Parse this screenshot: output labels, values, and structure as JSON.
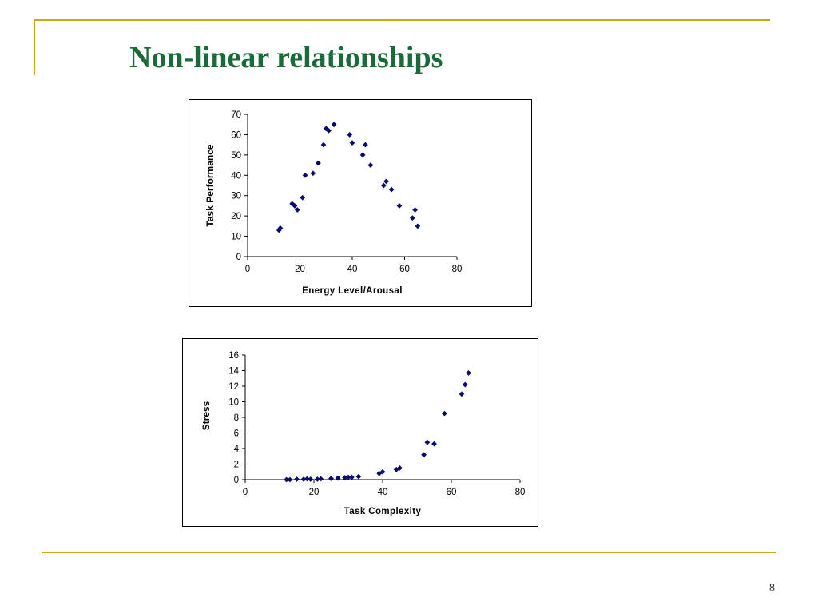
{
  "slide": {
    "title": "Non-linear relationships",
    "page_number": "8",
    "accent_color": "#d4a21a",
    "title_color": "#1a6a3a"
  },
  "chart_data": [
    {
      "type": "scatter",
      "marker_color": "#0a0a6e",
      "marker": "diamond",
      "xlabel": "Energy Level/Arousal",
      "ylabel": "Task Performance",
      "xlim": [
        0,
        80
      ],
      "ylim": [
        0,
        70
      ],
      "x_ticks": [
        0,
        20,
        40,
        60,
        80
      ],
      "y_ticks": [
        0,
        10,
        20,
        30,
        40,
        50,
        60,
        70
      ],
      "grid": false,
      "legend": "none",
      "points": [
        [
          12,
          13
        ],
        [
          12.5,
          14
        ],
        [
          17,
          26
        ],
        [
          18,
          25
        ],
        [
          19,
          23
        ],
        [
          21,
          29
        ],
        [
          22,
          40
        ],
        [
          25,
          41
        ],
        [
          27,
          46
        ],
        [
          29,
          55
        ],
        [
          30,
          63
        ],
        [
          31,
          62
        ],
        [
          33,
          65
        ],
        [
          39,
          60
        ],
        [
          40,
          56
        ],
        [
          44,
          50
        ],
        [
          45,
          55
        ],
        [
          47,
          45
        ],
        [
          52,
          35
        ],
        [
          53,
          37
        ],
        [
          55,
          33
        ],
        [
          58,
          25
        ],
        [
          63,
          19
        ],
        [
          64,
          23
        ],
        [
          65,
          15
        ]
      ]
    },
    {
      "type": "scatter",
      "marker_color": "#0a0a6e",
      "marker": "diamond",
      "xlabel": "Task Complexity",
      "ylabel": "Stress",
      "xlim": [
        0,
        80
      ],
      "ylim": [
        0,
        16
      ],
      "x_ticks": [
        0,
        20,
        40,
        60,
        80
      ],
      "y_ticks": [
        0,
        2,
        4,
        6,
        8,
        10,
        12,
        14,
        16
      ],
      "grid": false,
      "legend": "none",
      "points": [
        [
          12,
          0
        ],
        [
          13,
          0
        ],
        [
          15,
          0.05
        ],
        [
          17,
          0.05
        ],
        [
          18,
          0.1
        ],
        [
          19,
          0.05
        ],
        [
          21,
          0.05
        ],
        [
          22,
          0.1
        ],
        [
          25,
          0.15
        ],
        [
          27,
          0.2
        ],
        [
          29,
          0.25
        ],
        [
          30,
          0.3
        ],
        [
          31,
          0.3
        ],
        [
          33,
          0.4
        ],
        [
          39,
          0.8
        ],
        [
          40,
          1.0
        ],
        [
          44,
          1.3
        ],
        [
          45,
          1.5
        ],
        [
          52,
          3.2
        ],
        [
          53,
          4.8
        ],
        [
          55,
          4.6
        ],
        [
          58,
          8.5
        ],
        [
          63,
          11
        ],
        [
          64,
          12.2
        ],
        [
          65,
          13.7
        ]
      ]
    }
  ]
}
